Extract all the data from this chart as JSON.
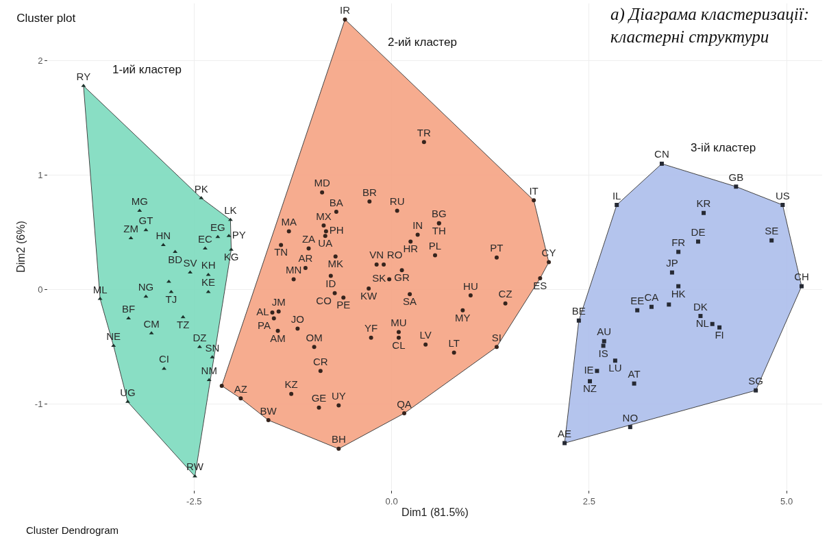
{
  "chart_data": {
    "type": "scatter",
    "title": "Cluster plot",
    "subtitle": "a) Діаграма кластеризації:\nкластерні структури",
    "xlabel": "Dim1 (81.5%)",
    "ylabel": "Dim2 (6%)",
    "xlim": [
      -4.35,
      5.45
    ],
    "ylim": [
      -1.75,
      2.5
    ],
    "xticks": [
      -2.5,
      {
        "value": 0,
        "label": "0.0"
      },
      2.5,
      {
        "value": 5,
        "label": "5.0"
      }
    ],
    "yticks": [
      -1,
      0,
      1,
      2
    ],
    "grid": true,
    "series": [
      {
        "type": "area",
        "name": "1-ий кластер",
        "color": "#7fdcc0",
        "x": [
          -3.9,
          -2.41,
          -2.04,
          -2.03,
          -2.49,
          -3.34,
          -3.52,
          -3.69
        ],
        "values": [
          1.78,
          0.8,
          0.61,
          0.35,
          -1.63,
          -0.98,
          -0.49,
          -0.08
        ]
      },
      {
        "type": "area",
        "name": "2-ий кластер",
        "color": "#f6a586",
        "x": [
          -0.59,
          1.8,
          1.99,
          1.88,
          1.33,
          0.16,
          -0.67,
          -1.56,
          -1.91,
          -2.15
        ],
        "values": [
          2.36,
          0.78,
          0.24,
          0.1,
          -0.5,
          -1.08,
          -1.39,
          -1.14,
          -0.95,
          -0.84
        ]
      },
      {
        "type": "area",
        "name": "3-ій кластер",
        "color": "#aebfec",
        "x": [
          3.42,
          4.36,
          4.95,
          5.19,
          4.61,
          2.19,
          2.37,
          2.85
        ],
        "values": [
          1.1,
          0.9,
          0.74,
          0.03,
          -0.88,
          -1.34,
          -0.27,
          0.74
        ]
      },
      {
        "color": "#1c302a",
        "marker": "triangle",
        "x": [
          -3.9,
          -2.41,
          -2.04,
          -2.06,
          -2.03,
          -3.19,
          -3.11,
          -3.3,
          -2.89,
          -2.74,
          -2.2,
          -2.36,
          -2.55,
          -2.32,
          -2.82,
          -2.79,
          -2.32,
          -3.69,
          -3.11,
          -3.33,
          -2.64,
          -3.04,
          -3.52,
          -2.43,
          -2.88,
          -2.31,
          -2.27,
          -3.34,
          -2.49
        ],
        "values": [
          1.78,
          0.8,
          0.61,
          0.47,
          0.35,
          0.69,
          0.52,
          0.45,
          0.39,
          0.33,
          0.46,
          0.36,
          0.15,
          0.13,
          0.07,
          -0.02,
          -0.02,
          -0.08,
          -0.06,
          -0.25,
          -0.24,
          -0.38,
          -0.49,
          -0.5,
          -0.69,
          -0.79,
          -0.59,
          -0.98,
          -1.63
        ],
        "value_labels": [
          "RY",
          "PK",
          "LK",
          "PY",
          "KG",
          "MG",
          "GT",
          "ZM",
          "HN",
          "BD",
          "EG",
          "EC",
          "SV",
          "KH",
          null,
          "TJ",
          "KE",
          "ML",
          "NG",
          "BF",
          "TZ",
          "CM",
          "NE",
          "DZ",
          "CI",
          "NM",
          "SN",
          "UG",
          "RW"
        ]
      },
      {
        "color": "#36241d",
        "marker": "circle",
        "x": [
          -0.59,
          0.41,
          -0.88,
          -0.28,
          0.07,
          -0.7,
          0.6,
          0.6,
          -0.86,
          -0.83,
          -0.84,
          -1.3,
          -1.4,
          -1.05,
          0.33,
          0.24,
          0.55,
          -0.71,
          -0.19,
          -0.1,
          -1.09,
          0.13,
          -0.77,
          -0.03,
          -1.24,
          -0.29,
          -0.72,
          -0.61,
          0.23,
          -1.51,
          -1.43,
          -1.49,
          -1.44,
          -1.19,
          0.09,
          0.09,
          -0.26,
          -0.98,
          0.43,
          -0.9,
          -2.15,
          -1.27,
          -1.91,
          -0.67,
          -0.92,
          -1.56,
          0.16,
          -0.67,
          1.8,
          1.33,
          1.99,
          1.88,
          1.0,
          1.44,
          0.9,
          0.79,
          1.33
        ],
        "values": [
          2.36,
          1.29,
          0.85,
          0.77,
          0.69,
          0.68,
          0.58,
          0.58,
          0.56,
          0.51,
          0.47,
          0.51,
          0.39,
          0.36,
          0.48,
          0.42,
          0.3,
          0.29,
          0.22,
          0.22,
          0.19,
          0.17,
          0.12,
          0.09,
          0.09,
          0.01,
          -0.03,
          -0.07,
          -0.04,
          -0.2,
          -0.19,
          -0.25,
          -0.36,
          -0.34,
          -0.37,
          -0.42,
          -0.42,
          -0.5,
          -0.48,
          -0.71,
          -0.84,
          -0.91,
          -0.95,
          -1.01,
          -1.03,
          -1.14,
          -1.08,
          -1.39,
          0.78,
          0.28,
          0.24,
          0.1,
          -0.05,
          -0.12,
          -0.18,
          -0.55,
          -0.5
        ],
        "value_labels": [
          "IR",
          "TR",
          "MD",
          "BR",
          "RU",
          "BA",
          "BG",
          "TH",
          "MX",
          "PH",
          "UA",
          "MA",
          "TN",
          "ZA",
          "IN",
          "HR",
          "PL",
          "MK",
          "VN",
          "RO",
          "AR",
          "GR",
          "ID",
          "SK",
          "MN",
          "KW",
          "CO",
          "PE",
          "SA",
          "AL",
          "JM",
          "PA",
          "AM",
          "JO",
          "MU",
          "CL",
          "YF",
          "OM",
          "LV",
          "CR",
          null,
          "KZ",
          "AZ",
          "UY",
          "GE",
          "BW",
          "QA",
          "BH",
          "IT",
          "PT",
          "CY",
          "ES",
          "HU",
          "CZ",
          "MY",
          "LT",
          "SI"
        ]
      },
      {
        "color": "#262a34",
        "marker": "square",
        "x": [
          3.42,
          2.85,
          4.36,
          4.95,
          3.95,
          3.88,
          4.81,
          3.63,
          3.55,
          5.19,
          3.63,
          3.29,
          3.51,
          3.11,
          3.91,
          4.06,
          4.15,
          2.37,
          2.69,
          2.68,
          2.83,
          2.6,
          2.51,
          3.07,
          4.61,
          3.02,
          2.19
        ],
        "values": [
          1.1,
          0.74,
          0.9,
          0.74,
          0.67,
          0.42,
          0.43,
          0.33,
          0.15,
          0.03,
          0.03,
          -0.15,
          -0.13,
          -0.18,
          -0.23,
          -0.3,
          -0.33,
          -0.27,
          -0.45,
          -0.49,
          -0.62,
          -0.71,
          -0.8,
          -0.82,
          -0.88,
          -1.2,
          -1.34
        ],
        "value_labels": [
          "CN",
          "IL",
          "GB",
          "US",
          "KR",
          "DE",
          "SE",
          "FR",
          "JP",
          "CH",
          "HK",
          "CA",
          null,
          "EE",
          "DK",
          "NL",
          "FI",
          "BE",
          "AU",
          "IS",
          "LU",
          "IE",
          "NZ",
          "AT",
          "SG",
          "NO",
          "AE"
        ]
      }
    ],
    "annotations": [
      "Cluster Dendrogram"
    ]
  }
}
